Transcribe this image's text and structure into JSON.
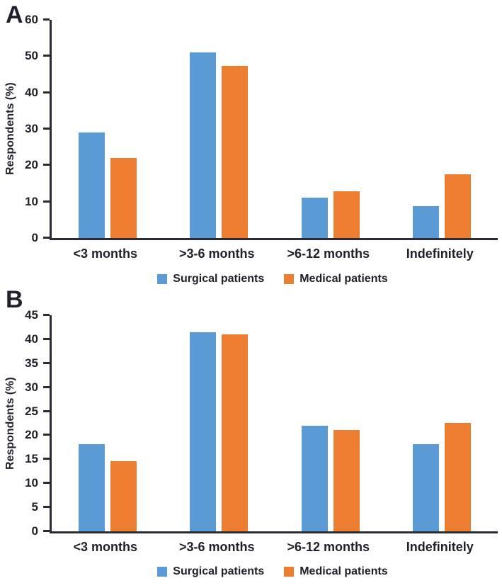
{
  "figure": {
    "y_axis_label": "Respondents (%)",
    "colors": {
      "surgical": "#5B9BD5",
      "medical": "#ED7D31",
      "axis": "#2b2b33",
      "text": "#21212b",
      "background": "#ffffff"
    }
  },
  "chart_data": [
    {
      "type": "bar",
      "panel": "A",
      "title": "",
      "categories": [
        "<3 months",
        ">3-6 months",
        ">6-12 months",
        "Indefinitely"
      ],
      "series": [
        {
          "name": "Surgical patients",
          "color": "#5B9BD5",
          "values": [
            29,
            51,
            11.2,
            8.7
          ]
        },
        {
          "name": "Medical patients",
          "color": "#ED7D31",
          "values": [
            22,
            47.4,
            12.8,
            17.6
          ]
        }
      ],
      "xlabel": "",
      "ylabel": "Respondents (%)",
      "ylim": [
        0,
        60
      ],
      "ytick_step": 10,
      "grid": false,
      "legend_position": "bottom"
    },
    {
      "type": "bar",
      "panel": "B",
      "title": "",
      "categories": [
        "<3 months",
        ">3-6 months",
        ">6-12 months",
        "Indefinitely"
      ],
      "series": [
        {
          "name": "Surgical patients",
          "color": "#5B9BD5",
          "values": [
            18.1,
            41.5,
            22,
            18.2
          ]
        },
        {
          "name": "Medical patients",
          "color": "#ED7D31",
          "values": [
            14.6,
            41,
            21.1,
            22.6
          ]
        }
      ],
      "xlabel": "",
      "ylabel": "Respondents (%)",
      "ylim": [
        0,
        45
      ],
      "ytick_step": 5,
      "grid": false,
      "legend_position": "bottom"
    }
  ]
}
